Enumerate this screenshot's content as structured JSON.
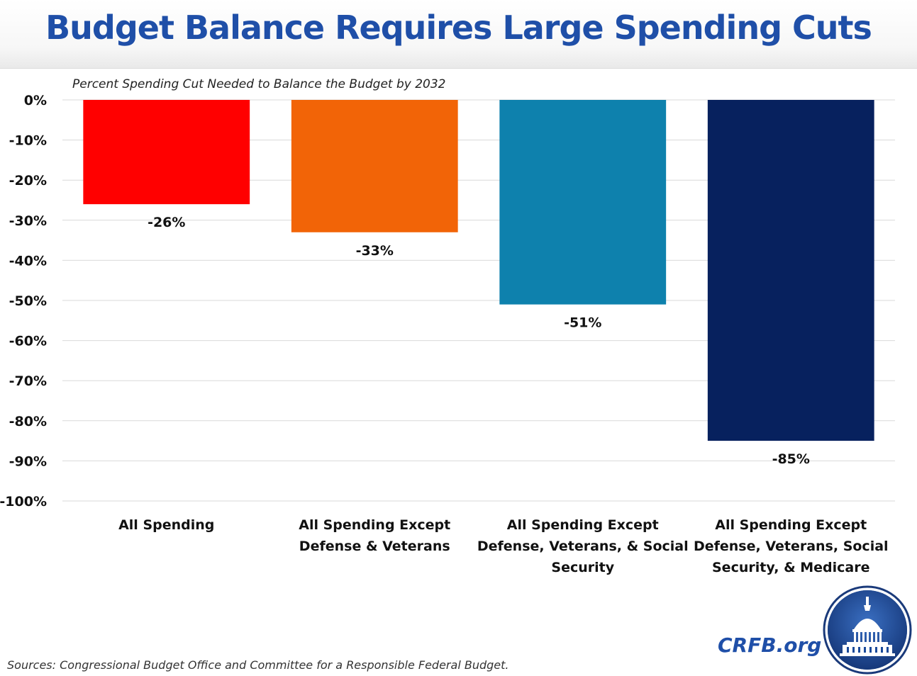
{
  "page": {
    "title": "Budget Balance Requires Large Spending Cuts",
    "subtitle": "Percent Spending Cut Needed to Balance the Budget by 2032",
    "source": "Sources: Congressional Budget Office and Committee for a Responsible Federal Budget.",
    "org": "CRFB.org"
  },
  "colors": {
    "title": "#1f4fa8",
    "grid": "#d9d9d9",
    "logo_ring": "#1a3a7a"
  },
  "chart_data": {
    "type": "bar",
    "title": "Percent Spending Cut Needed to Balance the Budget by 2032",
    "xlabel": "",
    "ylabel": "",
    "ylim": [
      -100,
      0
    ],
    "yticks": [
      0,
      -10,
      -20,
      -30,
      -40,
      -50,
      -60,
      -70,
      -80,
      -90,
      -100
    ],
    "ytick_labels": [
      "0%",
      "-10%",
      "-20%",
      "-30%",
      "-40%",
      "-50%",
      "-60%",
      "-70%",
      "-80%",
      "-90%",
      "-100%"
    ],
    "grid": true,
    "legend": false,
    "categories": [
      [
        "All Spending"
      ],
      [
        "All Spending Except",
        "Defense & Veterans"
      ],
      [
        "All Spending Except",
        "Defense, Veterans, & Social",
        "Security"
      ],
      [
        "All Spending Except",
        "Defense, Veterans, Social",
        "Security, & Medicare"
      ]
    ],
    "values": [
      -26,
      -33,
      -51,
      -85
    ],
    "data_labels": [
      "-26%",
      "-33%",
      "-51%",
      "-85%"
    ],
    "bar_colors": [
      "#ff0000",
      "#f26407",
      "#0e81ad",
      "#07215e"
    ]
  }
}
